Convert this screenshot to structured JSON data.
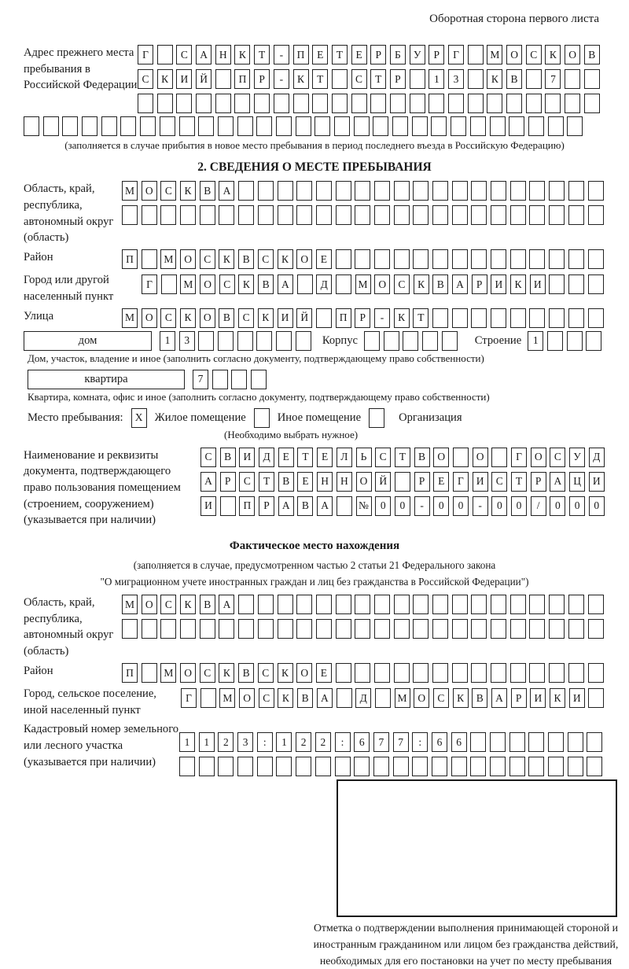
{
  "colors": {
    "ink": "#1a1a1a",
    "box_border": "#222222"
  },
  "page": {
    "header_note": "Оборотная сторона первого листа"
  },
  "prev_address": {
    "label": "Адрес прежнего места пребывания в Российской Федерации",
    "rows": [
      {
        "count": 24,
        "value": "Г САНКТ-ПЕТЕРБУРГ МОСКОВ"
      },
      {
        "count": 24,
        "value": "СКИЙ ПР-КТ СТР 13 КВ 7"
      },
      {
        "count": 24,
        "value": ""
      },
      {
        "count": 29,
        "value": ""
      }
    ],
    "note": "(заполняется в случае прибытия в новое место пребывания в период последнего въезда в Российскую Федерацию)"
  },
  "section2": {
    "title": "2. СВЕДЕНИЯ О МЕСТЕ ПРЕБЫВАНИЯ",
    "region": {
      "label": "Область, край, республика, автономный округ (область)",
      "rows": [
        {
          "count": 25,
          "value": "МОСКВА"
        },
        {
          "count": 25,
          "value": ""
        }
      ]
    },
    "district": {
      "label": "Район",
      "rows": [
        {
          "count": 25,
          "value": "П МОСКВСКОЕ"
        }
      ]
    },
    "city": {
      "label": "Город или другой населенный пункт",
      "rows": [
        {
          "count": 24,
          "value": "Г МОСКВА Д МОСКВАРИКИ"
        }
      ]
    },
    "street": {
      "label": "Улица",
      "rows": [
        {
          "count": 25,
          "value": "МОСКОВСКИЙ ПР-КТ"
        }
      ]
    },
    "house": {
      "box_label": "дом",
      "cells": {
        "count": 8,
        "value": "13"
      },
      "korpus_label": "Корпус",
      "korpus_cells": {
        "count": 5,
        "value": ""
      },
      "stroenie_label": "Строение",
      "stroenie_cells": {
        "count": 4,
        "value": "1"
      }
    },
    "house_note": "Дом, участок, владение и иное (заполнить согласно документу, подтверждающему право собственности)",
    "apartment": {
      "box_label": "квартира",
      "cells": {
        "count": 4,
        "value": "7"
      }
    },
    "apartment_note": "Квартира, комната, офис и иное (заполнить согласно документу, подтверждающему право собственности)",
    "stay_type": {
      "label": "Место пребывания:",
      "options": [
        {
          "label": "Жилое помещение",
          "checked": "X"
        },
        {
          "label": "Иное помещение",
          "checked": ""
        },
        {
          "label": "Организация",
          "checked": ""
        }
      ],
      "note": "(Необходимо выбрать нужное)"
    },
    "doc": {
      "label": "Наименование и реквизиты документа, подтверждающего право пользования помещением (строением, сооружением) (указывается при наличии)",
      "rows": [
        {
          "count": 21,
          "value": "СВИДЕТЕЛЬСТВО О ГОСУД"
        },
        {
          "count": 21,
          "value": "АРСТВЕННОЙ РЕГИСТРАЦИ"
        },
        {
          "count": 21,
          "value": "И ПРАВА №00-00-00/000"
        }
      ]
    }
  },
  "fact": {
    "title": "Фактическое место нахождения",
    "note1": "(заполняется в случае, предусмотренном частью 2 статьи 21 Федерального закона",
    "note2": "\"О миграционном учете иностранных граждан и лиц без гражданства в Российской Федерации\")",
    "region": {
      "label": "Область, край, республика, автономный округ (область)",
      "rows": [
        {
          "count": 25,
          "value": "МОСКВА"
        },
        {
          "count": 25,
          "value": ""
        }
      ]
    },
    "district": {
      "label": "Район",
      "rows": [
        {
          "count": 25,
          "value": "П МОСКВСКОЕ"
        }
      ]
    },
    "city": {
      "label": "Город, сельское поселение, иной населенный пункт",
      "rows": [
        {
          "count": 22,
          "value": "Г МОСКВА Д МОСКВАРИКИ"
        }
      ]
    },
    "cadastre": {
      "label": "Кадастровый номер земельного или лесного участка (указывается при наличии)",
      "rows": [
        {
          "count": 22,
          "value": "1123:122:677:66"
        },
        {
          "count": 22,
          "value": ""
        }
      ]
    }
  },
  "stamp": {
    "caption": "Отметка о подтверждении выполнения принимающей стороной и иностранным гражданином или лицом без гражданства действий, необходимых для его постановки на учет по месту пребывания"
  }
}
